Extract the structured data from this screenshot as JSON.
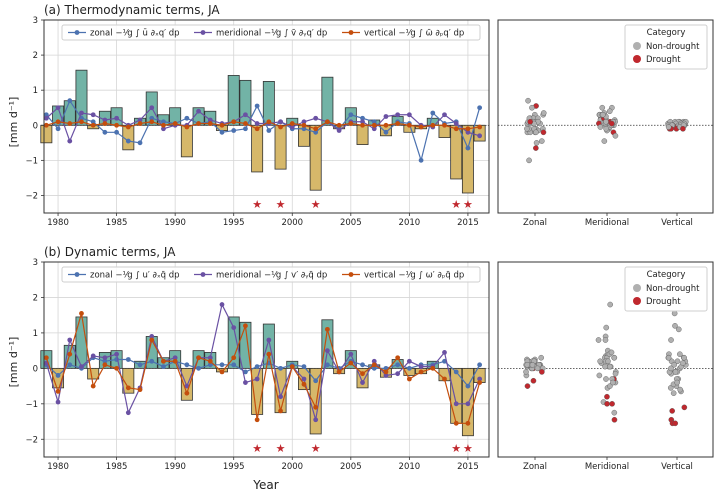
{
  "colors": {
    "bar_positive": "#72b3a6",
    "bar_negative": "#d6b86a",
    "zonal": "#4c72b0",
    "meridional": "#6a51a3",
    "vertical": "#c44e0d",
    "non_drought": "#b0b0b0",
    "drought": "#c0282e",
    "star": "#c0282e"
  },
  "common": {
    "xlabel": "Year",
    "ylabel": "[mm d⁻¹]",
    "year_ticks": [
      "1980",
      "1985",
      "1990",
      "1995",
      "2000",
      "2005",
      "2010",
      "2015"
    ],
    "y_ticks": [
      "−2",
      "−1",
      "0",
      "1",
      "2",
      "3"
    ],
    "ylim": [
      -2.5,
      3
    ],
    "categories": [
      "Zonal",
      "Meridional",
      "Vertical"
    ],
    "legend_title": "Category",
    "legend_labels": [
      "Non-drought",
      "Drought"
    ],
    "drought_years": [
      1997,
      1999,
      2002,
      2014,
      2015
    ],
    "star_glyph": "★"
  },
  "chart_data": [
    {
      "type": "bar",
      "title": "(a) Thermodynamic terms, JA",
      "legend": [
        "zonal  −¹⁄g ∫ ū ∂ₓq′ dp",
        "meridional  −¹⁄g ∫ v̄ ∂ᵧq′ dp",
        "vertical  −¹⁄g ∫ ω̄ ∂ₚq′ dp"
      ],
      "years": [
        1979,
        1980,
        1981,
        1982,
        1983,
        1984,
        1985,
        1986,
        1987,
        1988,
        1989,
        1990,
        1991,
        1992,
        1993,
        1994,
        1995,
        1996,
        1997,
        1998,
        1999,
        2000,
        2001,
        2002,
        2003,
        2004,
        2005,
        2006,
        2007,
        2008,
        2009,
        2010,
        2011,
        2012,
        2013,
        2014,
        2015,
        2016
      ],
      "total": [
        -0.5,
        0.55,
        0.7,
        1.57,
        -0.1,
        0.4,
        0.5,
        -0.7,
        0.2,
        0.95,
        0.3,
        0.5,
        -0.9,
        0.5,
        0.4,
        -0.15,
        1.42,
        1.28,
        -1.33,
        1.25,
        -1.25,
        0.2,
        -0.6,
        -1.85,
        1.37,
        -0.1,
        0.5,
        -0.55,
        0.15,
        -0.3,
        0.25,
        -0.2,
        -0.1,
        0.2,
        -0.35,
        -1.53,
        -1.93,
        -0.45
      ],
      "zonal": [
        0.3,
        -0.1,
        0.7,
        0.2,
        0.1,
        -0.2,
        -0.2,
        -0.45,
        -0.5,
        0.2,
        0.1,
        0.05,
        0.2,
        0.05,
        0.1,
        -0.2,
        -0.15,
        -0.1,
        0.55,
        -0.15,
        0.1,
        -0.1,
        -0.1,
        -0.2,
        0.1,
        -0.1,
        0.3,
        0.2,
        0.1,
        -0.2,
        0.1,
        0.05,
        -1.0,
        0.35,
        0.05,
        0.1,
        -0.65,
        0.5
      ],
      "meridional": [
        0.2,
        0.5,
        -0.45,
        0.35,
        0.3,
        0.15,
        0.2,
        0.0,
        0.15,
        0.5,
        -0.1,
        0.0,
        0.0,
        0.4,
        0.15,
        0.05,
        0.1,
        0.3,
        0.05,
        0.05,
        0.1,
        -0.05,
        0.1,
        0.2,
        0.1,
        -0.15,
        0.1,
        0.1,
        -0.1,
        0.25,
        0.3,
        0.3,
        0.0,
        -0.05,
        0.3,
        0.05,
        -0.2,
        -0.3
      ],
      "vertical": [
        0.0,
        0.1,
        0.05,
        0.1,
        0.0,
        0.05,
        0.0,
        -0.05,
        0.05,
        0.1,
        0.0,
        0.05,
        -0.05,
        0.05,
        0.05,
        0.0,
        0.1,
        0.05,
        -0.1,
        0.1,
        -0.05,
        0.05,
        0.0,
        -0.1,
        0.1,
        0.0,
        0.05,
        0.0,
        0.0,
        0.0,
        0.05,
        0.0,
        -0.05,
        0.0,
        0.0,
        -0.1,
        -0.1,
        -0.05
      ]
    },
    {
      "type": "bar",
      "title": "(b) Dynamic terms, JA",
      "legend": [
        "zonal  −¹⁄g ∫ u′ ∂ₓq̄ dp",
        "meridional  −¹⁄g ∫ v′ ∂ᵧq̄ dp",
        "vertical  −¹⁄g ∫ ω′ ∂ₚq̄ dp"
      ],
      "years": [
        1979,
        1980,
        1981,
        1982,
        1983,
        1984,
        1985,
        1986,
        1987,
        1988,
        1989,
        1990,
        1991,
        1992,
        1993,
        1994,
        1995,
        1996,
        1997,
        1998,
        1999,
        2000,
        2001,
        2002,
        2003,
        2004,
        2005,
        2006,
        2007,
        2008,
        2009,
        2010,
        2011,
        2012,
        2013,
        2014,
        2015,
        2016
      ],
      "total": [
        0.5,
        -0.55,
        0.65,
        1.45,
        -0.3,
        0.45,
        0.5,
        -0.7,
        0.2,
        0.9,
        0.3,
        0.5,
        -0.9,
        0.5,
        0.45,
        -0.1,
        1.45,
        1.3,
        -1.3,
        1.25,
        -1.25,
        0.2,
        -0.6,
        -1.85,
        1.37,
        -0.15,
        0.5,
        -0.55,
        0.1,
        -0.25,
        0.25,
        -0.2,
        -0.15,
        0.2,
        -0.35,
        -1.55,
        -1.9,
        -0.4
      ],
      "zonal": [
        0.1,
        -0.2,
        0.1,
        0.0,
        0.3,
        0.2,
        0.25,
        0.25,
        0.1,
        0.2,
        0.05,
        0.2,
        0.1,
        0.0,
        0.1,
        0.1,
        0.1,
        -0.1,
        0.05,
        0.15,
        0.0,
        0.1,
        0.05,
        -0.35,
        0.1,
        0.0,
        0.2,
        0.1,
        0.0,
        0.0,
        0.1,
        0.0,
        0.1,
        0.1,
        0.2,
        -0.1,
        -0.5,
        0.1
      ],
      "meridional": [
        0.15,
        -0.95,
        0.8,
        0.05,
        0.35,
        0.3,
        0.4,
        -1.25,
        -0.55,
        0.9,
        0.2,
        0.3,
        -0.5,
        0.3,
        0.3,
        1.8,
        1.15,
        -0.4,
        -0.3,
        0.8,
        -0.8,
        0.05,
        -0.3,
        -1.45,
        0.5,
        -0.1,
        0.4,
        -0.4,
        0.2,
        -0.2,
        -0.15,
        0.2,
        0.05,
        0.05,
        0.45,
        -1.0,
        -1.0,
        -0.3
      ],
      "vertical": [
        0.3,
        -0.65,
        0.4,
        1.55,
        -0.5,
        0.1,
        0.0,
        -0.55,
        -0.6,
        0.8,
        0.2,
        0.2,
        -0.7,
        0.3,
        0.2,
        -0.1,
        0.3,
        1.2,
        -1.45,
        0.4,
        -1.2,
        0.05,
        -0.45,
        -1.1,
        1.1,
        -0.1,
        0.15,
        -0.15,
        0.1,
        -0.1,
        0.3,
        -0.3,
        -0.1,
        0.0,
        -0.3,
        -1.55,
        -1.55,
        -0.4
      ]
    }
  ]
}
